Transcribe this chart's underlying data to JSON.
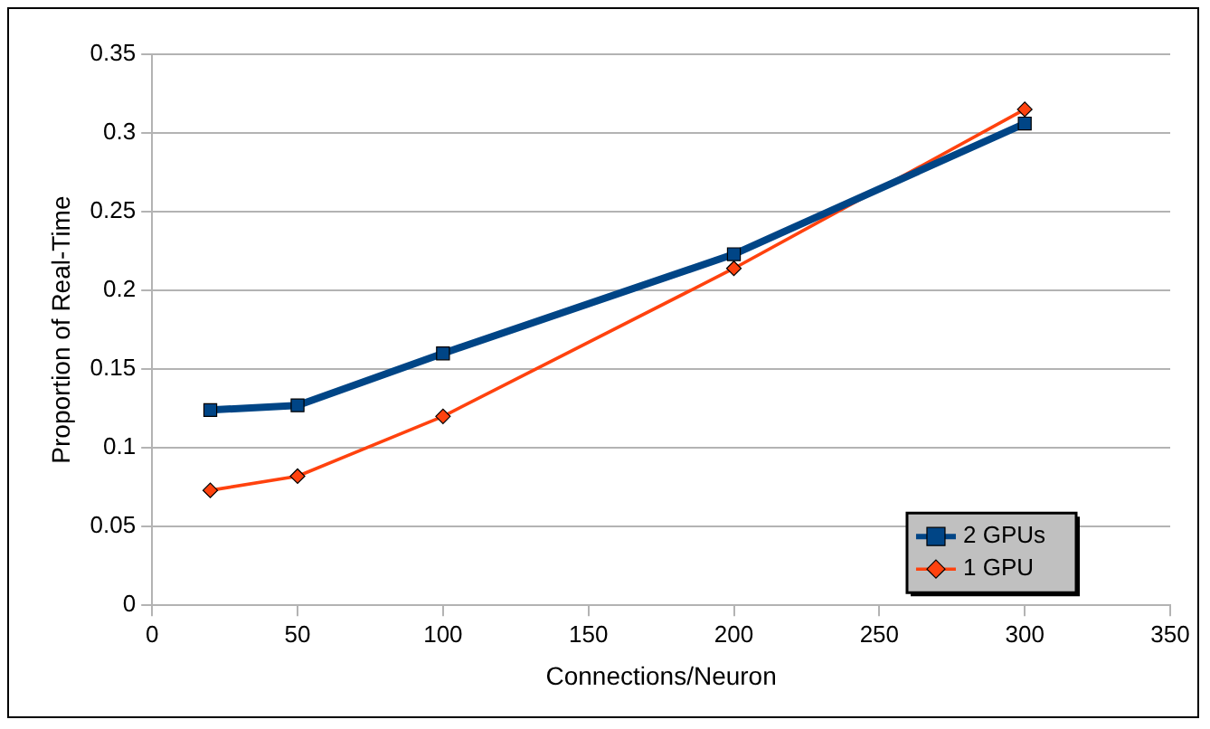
{
  "chart_data": {
    "type": "line",
    "xlabel": "Connections/Neuron",
    "ylabel": "Proportion of Real-Time",
    "x": [
      20,
      50,
      100,
      200,
      300
    ],
    "series": [
      {
        "name": "2 GPUs",
        "color": "#004586",
        "values": [
          0.124,
          0.127,
          0.16,
          0.223,
          0.306
        ],
        "marker": "square"
      },
      {
        "name": "1 GPU",
        "color": "#ff420e",
        "values": [
          0.073,
          0.082,
          0.12,
          0.214,
          0.315
        ],
        "marker": "diamond"
      }
    ],
    "xlim": [
      0,
      350
    ],
    "xticks": [
      0,
      50,
      100,
      150,
      200,
      250,
      300,
      350
    ],
    "ylim": [
      0,
      0.35
    ],
    "yticks": [
      0,
      0.05,
      0.1,
      0.15,
      0.2,
      0.25,
      0.3,
      0.35
    ],
    "grid": "y",
    "legend": "bottom right"
  }
}
